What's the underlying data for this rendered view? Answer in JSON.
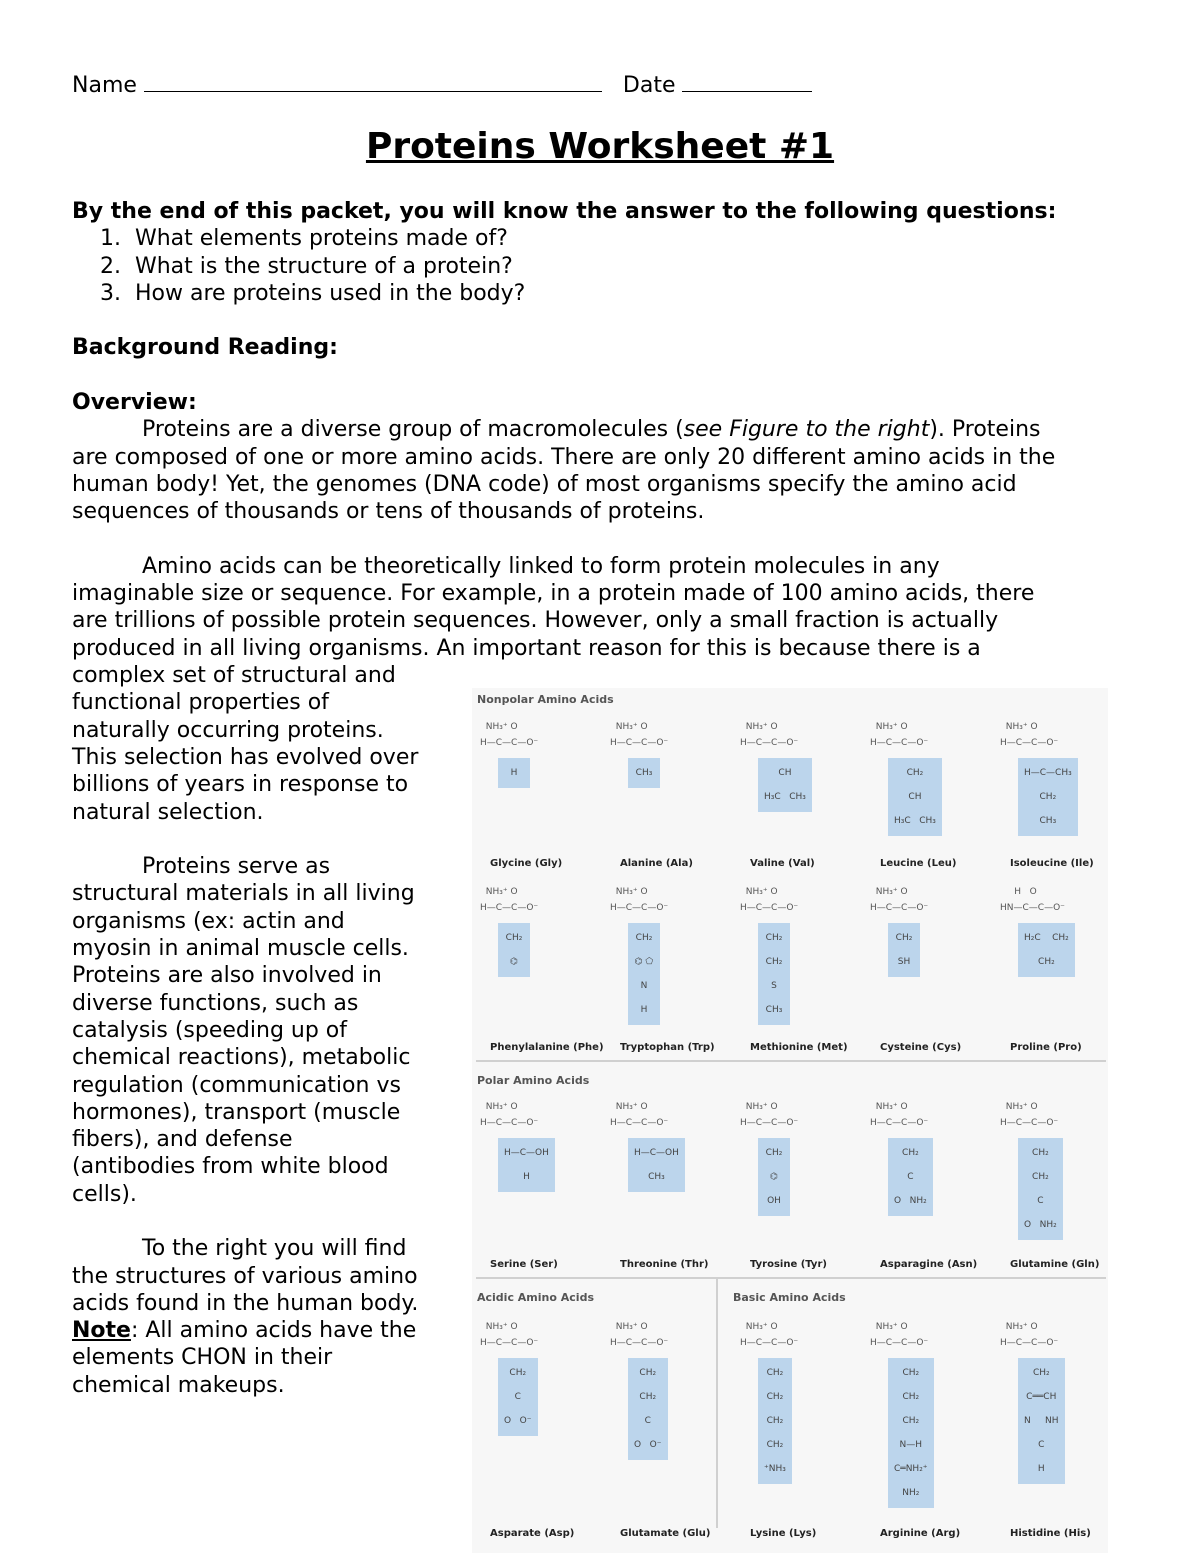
{
  "header": {
    "name_label": "Name",
    "date_label": "Date"
  },
  "title": "Proteins Worksheet #1",
  "body": {
    "lines": [
      {
        "style": "",
        "segs": [
          {
            "t": "By the end of this packet, you will know the answer to the following questions:",
            "f": "b"
          }
        ]
      },
      {
        "style": "num",
        "segs": [
          {
            "t": "1.  What elements proteins made of?"
          }
        ]
      },
      {
        "style": "num",
        "segs": [
          {
            "t": "2.  What is the structure of a protein?"
          }
        ]
      },
      {
        "style": "num",
        "segs": [
          {
            "t": "3.  How are proteins used in the body?"
          }
        ]
      },
      {
        "style": "",
        "segs": []
      },
      {
        "style": "",
        "segs": [
          {
            "t": "Background Reading:",
            "f": "b"
          }
        ]
      },
      {
        "style": "",
        "segs": []
      },
      {
        "style": "",
        "segs": [
          {
            "t": "Overview:",
            "f": "b"
          }
        ]
      },
      {
        "style": "ind",
        "segs": [
          {
            "t": "Proteins are a diverse group of macromolecules ("
          },
          {
            "t": "see Figure to the right",
            "f": "i"
          },
          {
            "t": "). Proteins"
          }
        ]
      },
      {
        "style": "",
        "segs": [
          {
            "t": "are composed of one or more amino acids. There are only 20 different amino acids in the"
          }
        ]
      },
      {
        "style": "",
        "segs": [
          {
            "t": "human body! Yet, the genomes (DNA code) of most organisms specify the amino acid"
          }
        ]
      },
      {
        "style": "",
        "segs": [
          {
            "t": "sequences of thousands or tens of thousands of proteins."
          }
        ]
      },
      {
        "style": "",
        "segs": []
      },
      {
        "style": "ind",
        "segs": [
          {
            "t": "Amino acids can be theoretically linked to form protein molecules in any"
          }
        ]
      },
      {
        "style": "",
        "segs": [
          {
            "t": "imaginable size or sequence. For example, in a protein made of 100 amino acids, there"
          }
        ]
      },
      {
        "style": "",
        "segs": [
          {
            "t": "are trillions of possible protein sequences. However, only a small fraction is actually"
          }
        ]
      },
      {
        "style": "",
        "segs": [
          {
            "t": "produced in all living organisms. An important reason for this is because there is a"
          }
        ]
      },
      {
        "style": "",
        "segs": [
          {
            "t": "complex set of structural and"
          }
        ]
      },
      {
        "style": "",
        "segs": [
          {
            "t": "functional properties of"
          }
        ]
      },
      {
        "style": "",
        "segs": [
          {
            "t": "naturally occurring proteins."
          }
        ]
      },
      {
        "style": "",
        "segs": [
          {
            "t": "This selection has evolved over"
          }
        ]
      },
      {
        "style": "",
        "segs": [
          {
            "t": "billions of years in response to"
          }
        ]
      },
      {
        "style": "",
        "segs": [
          {
            "t": "natural selection."
          }
        ]
      },
      {
        "style": "",
        "segs": []
      },
      {
        "style": "ind",
        "segs": [
          {
            "t": "Proteins serve as"
          }
        ]
      },
      {
        "style": "",
        "segs": [
          {
            "t": "structural materials in all living"
          }
        ]
      },
      {
        "style": "",
        "segs": [
          {
            "t": "organisms (ex: actin and"
          }
        ]
      },
      {
        "style": "",
        "segs": [
          {
            "t": "myosin in animal muscle cells."
          }
        ]
      },
      {
        "style": "",
        "segs": [
          {
            "t": "Proteins are also involved in"
          }
        ]
      },
      {
        "style": "",
        "segs": [
          {
            "t": "diverse functions, such as"
          }
        ]
      },
      {
        "style": "",
        "segs": [
          {
            "t": "catalysis (speeding up of"
          }
        ]
      },
      {
        "style": "",
        "segs": [
          {
            "t": "chemical reactions), metabolic"
          }
        ]
      },
      {
        "style": "",
        "segs": [
          {
            "t": "regulation (communication vs"
          }
        ]
      },
      {
        "style": "",
        "segs": [
          {
            "t": "hormones), transport (muscle"
          }
        ]
      },
      {
        "style": "",
        "segs": [
          {
            "t": "fibers), and defense"
          }
        ]
      },
      {
        "style": "",
        "segs": [
          {
            "t": "(antibodies from white blood"
          }
        ]
      },
      {
        "style": "",
        "segs": [
          {
            "t": "cells)."
          }
        ]
      },
      {
        "style": "",
        "segs": []
      },
      {
        "style": "ind",
        "segs": [
          {
            "t": "To the right you will find"
          }
        ]
      },
      {
        "style": "",
        "segs": [
          {
            "t": "the structures of various amino"
          }
        ]
      },
      {
        "style": "",
        "segs": [
          {
            "t": "acids found in the human body."
          }
        ]
      },
      {
        "style": "",
        "segs": [
          {
            "t": "Note",
            "f": "b u"
          },
          {
            "t": ": All amino acids have the"
          }
        ]
      },
      {
        "style": "",
        "segs": [
          {
            "t": "elements CHON in their"
          }
        ]
      },
      {
        "style": "",
        "segs": [
          {
            "t": "chemical makeups."
          }
        ]
      }
    ]
  },
  "figure": {
    "highlight_color": "#bcd5ec",
    "backbone": [
      "  NH₃⁺ O",
      "H—C—C—O⁻"
    ],
    "groups": [
      {
        "title": "Nonpolar Amino Acids",
        "acids": [
          {
            "name": "Glycine (Gly)",
            "side": [
              "H"
            ]
          },
          {
            "name": "Alanine (Ala)",
            "side": [
              "CH₃"
            ]
          },
          {
            "name": "Valine (Val)",
            "side": [
              "CH",
              "H₃C   CH₃"
            ]
          },
          {
            "name": "Leucine (Leu)",
            "side": [
              "CH₂",
              "CH",
              "H₃C   CH₃"
            ]
          },
          {
            "name": "Isoleucine (Ile)",
            "side": [
              "H—C—CH₃",
              "CH₂",
              "CH₃"
            ]
          },
          {
            "name": "Phenylalanine (Phe)",
            "side": [
              "CH₂",
              "⌬"
            ]
          },
          {
            "name": "Tryptophan (Trp)",
            "side": [
              "CH₂",
              "⌬ ⬠",
              "N",
              "H"
            ]
          },
          {
            "name": "Methionine (Met)",
            "side": [
              "CH₂",
              "CH₂",
              "S",
              "CH₃"
            ]
          },
          {
            "name": "Cysteine (Cys)",
            "side": [
              "CH₂",
              "SH"
            ]
          },
          {
            "name": "Proline (Pro)",
            "backbone": [
              "     H   O",
              "HN—C—C—O⁻"
            ],
            "side": [
              "H₂C    CH₂",
              "CH₂"
            ]
          }
        ]
      },
      {
        "title": "Polar Amino Acids",
        "acids": [
          {
            "name": "Serine (Ser)",
            "side": [
              "H—C—OH",
              "H"
            ]
          },
          {
            "name": "Threonine (Thr)",
            "side": [
              "H—C—OH",
              "CH₃"
            ]
          },
          {
            "name": "Tyrosine (Tyr)",
            "side": [
              "CH₂",
              "⌬",
              "OH"
            ]
          },
          {
            "name": "Asparagine (Asn)",
            "side": [
              "CH₂",
              "C",
              "O   NH₂"
            ]
          },
          {
            "name": "Glutamine (Gln)",
            "side": [
              "CH₂",
              "CH₂",
              "C",
              "O   NH₂"
            ]
          }
        ]
      },
      {
        "title": "Acidic Amino Acids",
        "acids": [
          {
            "name": "Asparate (Asp)",
            "side": [
              "CH₂",
              "C",
              "O   O⁻"
            ]
          },
          {
            "name": "Glutamate (Glu)",
            "side": [
              "CH₂",
              "CH₂",
              "C",
              "O   O⁻"
            ]
          }
        ]
      },
      {
        "title": "Basic Amino Acids",
        "acids": [
          {
            "name": "Lysine (Lys)",
            "side": [
              "CH₂",
              "CH₂",
              "CH₂",
              "CH₂",
              "⁺NH₃"
            ]
          },
          {
            "name": "Arginine (Arg)",
            "side": [
              "CH₂",
              "CH₂",
              "CH₂",
              "N—H",
              "C═NH₂⁺",
              "NH₂"
            ]
          },
          {
            "name": "Histidine (His)",
            "side": [
              "CH₂",
              "C══CH",
              "N     NH",
              "C",
              "H"
            ]
          }
        ]
      }
    ]
  }
}
